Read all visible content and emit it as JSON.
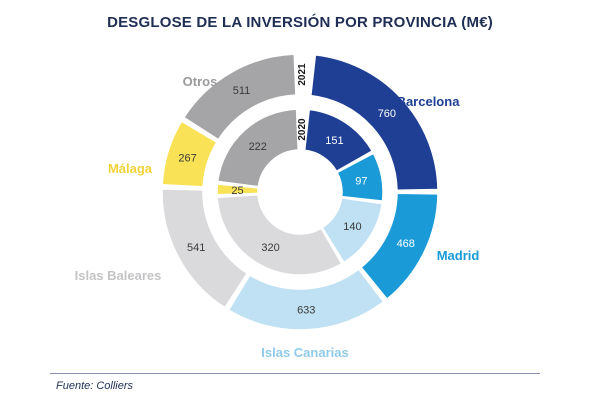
{
  "title": "DESGLOSE DE LA INVERSIÓN POR PROVINCIA (M€)",
  "source": "Fuente: Colliers",
  "chart_data": {
    "type": "pie",
    "subtype": "nested-donut",
    "rings": [
      {
        "name": "2021",
        "position": "outer"
      },
      {
        "name": "2020",
        "position": "inner"
      }
    ],
    "categories": [
      "Barcelona",
      "Madrid",
      "Islas Canarias",
      "Islas Baleares",
      "Málaga",
      "Otros"
    ],
    "colors": {
      "Barcelona": "#1f3f95",
      "Madrid": "#1a9ad7",
      "Islas Canarias": "#bfe1f3",
      "Islas Baleares": "#dadadc",
      "Málaga": "#f9e255",
      "Otros": "#a5a5a7"
    },
    "series": [
      {
        "name": "2021",
        "values": [
          760,
          468,
          633,
          541,
          267,
          511
        ]
      },
      {
        "name": "2020",
        "values": [
          151,
          97,
          140,
          320,
          25,
          222
        ]
      }
    ]
  }
}
